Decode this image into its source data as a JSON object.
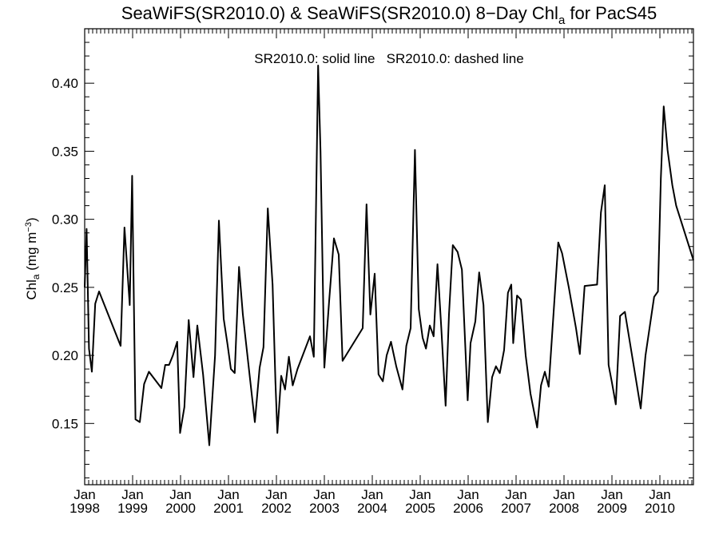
{
  "chart_data": {
    "type": "line",
    "title_main": "SeaWiFS(SR2010.0) & SeaWiFS(SR2010.0) 8−Day Chl",
    "title_sub": "a",
    "title_end": " for PacS45",
    "annotation": "SR2010.0: solid line   SR2010.0: dashed line",
    "ylabel_main": "Chl",
    "ylabel_sub": "a",
    "ylabel_unit": " (mg m",
    "ylabel_sup": "−3",
    "ylabel_close": ")",
    "ylim": [
      0.105,
      0.44
    ],
    "xlim": [
      1998.0,
      2010.7
    ],
    "yticks_major": [
      0.15,
      0.2,
      0.25,
      0.3,
      0.35,
      0.4
    ],
    "ytick_labels": [
      "0.15",
      "0.20",
      "0.25",
      "0.30",
      "0.35",
      "0.40"
    ],
    "xticks": [
      {
        "x": 1998,
        "month": "Jan",
        "year": "1998"
      },
      {
        "x": 1999,
        "month": "Jan",
        "year": "1999"
      },
      {
        "x": 2000,
        "month": "Jan",
        "year": "2000"
      },
      {
        "x": 2001,
        "month": "Jan",
        "year": "2001"
      },
      {
        "x": 2002,
        "month": "Jan",
        "year": "2002"
      },
      {
        "x": 2003,
        "month": "Jan",
        "year": "2003"
      },
      {
        "x": 2004,
        "month": "Jan",
        "year": "2004"
      },
      {
        "x": 2005,
        "month": "Jan",
        "year": "2005"
      },
      {
        "x": 2006,
        "month": "Jan",
        "year": "2006"
      },
      {
        "x": 2007,
        "month": "Jan",
        "year": "2007"
      },
      {
        "x": 2008,
        "month": "Jan",
        "year": "2008"
      },
      {
        "x": 2009,
        "month": "Jan",
        "year": "2009"
      },
      {
        "x": 2010,
        "month": "Jan",
        "year": "2010"
      }
    ],
    "grid": false,
    "series": [
      {
        "style": "solid",
        "color": "#000000",
        "points": [
          [
            1998.0,
            0.25
          ],
          [
            1998.04,
            0.293
          ],
          [
            1998.09,
            0.205
          ],
          [
            1998.15,
            0.188
          ],
          [
            1998.22,
            0.238
          ],
          [
            1998.3,
            0.247
          ],
          [
            1998.75,
            0.207
          ],
          [
            1998.83,
            0.294
          ],
          [
            1998.94,
            0.237
          ],
          [
            1998.99,
            0.332
          ],
          [
            1999.06,
            0.153
          ],
          [
            1999.15,
            0.151
          ],
          [
            1999.24,
            0.179
          ],
          [
            1999.34,
            0.188
          ],
          [
            1999.6,
            0.176
          ],
          [
            1999.68,
            0.193
          ],
          [
            1999.76,
            0.193
          ],
          [
            1999.84,
            0.2
          ],
          [
            1999.93,
            0.21
          ],
          [
            1999.99,
            0.143
          ],
          [
            2000.08,
            0.162
          ],
          [
            2000.17,
            0.226
          ],
          [
            2000.27,
            0.184
          ],
          [
            2000.35,
            0.222
          ],
          [
            2000.47,
            0.186
          ],
          [
            2000.6,
            0.134
          ],
          [
            2000.72,
            0.2
          ],
          [
            2000.8,
            0.299
          ],
          [
            2000.9,
            0.227
          ],
          [
            2000.98,
            0.208
          ],
          [
            2001.05,
            0.19
          ],
          [
            2001.13,
            0.187
          ],
          [
            2001.22,
            0.265
          ],
          [
            2001.3,
            0.23
          ],
          [
            2001.55,
            0.151
          ],
          [
            2001.65,
            0.191
          ],
          [
            2001.73,
            0.206
          ],
          [
            2001.82,
            0.308
          ],
          [
            2001.92,
            0.252
          ],
          [
            2001.98,
            0.18
          ],
          [
            2002.02,
            0.143
          ],
          [
            2002.1,
            0.185
          ],
          [
            2002.18,
            0.175
          ],
          [
            2002.26,
            0.199
          ],
          [
            2002.34,
            0.178
          ],
          [
            2002.44,
            0.19
          ],
          [
            2002.7,
            0.214
          ],
          [
            2002.78,
            0.199
          ],
          [
            2002.87,
            0.413
          ],
          [
            2002.92,
            0.35
          ],
          [
            2003.0,
            0.191
          ],
          [
            2003.1,
            0.24
          ],
          [
            2003.2,
            0.286
          ],
          [
            2003.3,
            0.274
          ],
          [
            2003.38,
            0.196
          ],
          [
            2003.8,
            0.22
          ],
          [
            2003.88,
            0.311
          ],
          [
            2003.96,
            0.23
          ],
          [
            2004.05,
            0.26
          ],
          [
            2004.13,
            0.186
          ],
          [
            2004.22,
            0.181
          ],
          [
            2004.3,
            0.2
          ],
          [
            2004.39,
            0.21
          ],
          [
            2004.5,
            0.192
          ],
          [
            2004.63,
            0.175
          ],
          [
            2004.71,
            0.207
          ],
          [
            2004.8,
            0.22
          ],
          [
            2004.89,
            0.351
          ],
          [
            2004.97,
            0.234
          ],
          [
            2005.05,
            0.213
          ],
          [
            2005.12,
            0.205
          ],
          [
            2005.2,
            0.222
          ],
          [
            2005.28,
            0.214
          ],
          [
            2005.36,
            0.267
          ],
          [
            2005.44,
            0.22
          ],
          [
            2005.53,
            0.163
          ],
          [
            2005.6,
            0.23
          ],
          [
            2005.68,
            0.281
          ],
          [
            2005.78,
            0.276
          ],
          [
            2005.87,
            0.263
          ],
          [
            2005.99,
            0.167
          ],
          [
            2006.05,
            0.209
          ],
          [
            2006.15,
            0.225
          ],
          [
            2006.23,
            0.261
          ],
          [
            2006.32,
            0.237
          ],
          [
            2006.41,
            0.151
          ],
          [
            2006.5,
            0.184
          ],
          [
            2006.58,
            0.192
          ],
          [
            2006.66,
            0.187
          ],
          [
            2006.75,
            0.204
          ],
          [
            2006.83,
            0.246
          ],
          [
            2006.9,
            0.252
          ],
          [
            2006.94,
            0.209
          ],
          [
            2007.02,
            0.244
          ],
          [
            2007.1,
            0.241
          ],
          [
            2007.2,
            0.2
          ],
          [
            2007.3,
            0.172
          ],
          [
            2007.44,
            0.147
          ],
          [
            2007.52,
            0.178
          ],
          [
            2007.6,
            0.188
          ],
          [
            2007.68,
            0.177
          ],
          [
            2007.78,
            0.23
          ],
          [
            2007.88,
            0.283
          ],
          [
            2007.96,
            0.275
          ],
          [
            2008.1,
            0.25
          ],
          [
            2008.25,
            0.22
          ],
          [
            2008.33,
            0.201
          ],
          [
            2008.43,
            0.251
          ],
          [
            2008.69,
            0.252
          ],
          [
            2008.77,
            0.305
          ],
          [
            2008.85,
            0.325
          ],
          [
            2008.93,
            0.193
          ],
          [
            2009.0,
            0.18
          ],
          [
            2009.08,
            0.164
          ],
          [
            2009.17,
            0.229
          ],
          [
            2009.27,
            0.232
          ],
          [
            2009.6,
            0.161
          ],
          [
            2009.7,
            0.2
          ],
          [
            2009.88,
            0.243
          ],
          [
            2009.96,
            0.247
          ],
          [
            2010.02,
            0.33
          ],
          [
            2010.08,
            0.383
          ],
          [
            2010.16,
            0.351
          ],
          [
            2010.26,
            0.325
          ],
          [
            2010.34,
            0.31
          ],
          [
            2010.7,
            0.27
          ]
        ]
      }
    ]
  }
}
